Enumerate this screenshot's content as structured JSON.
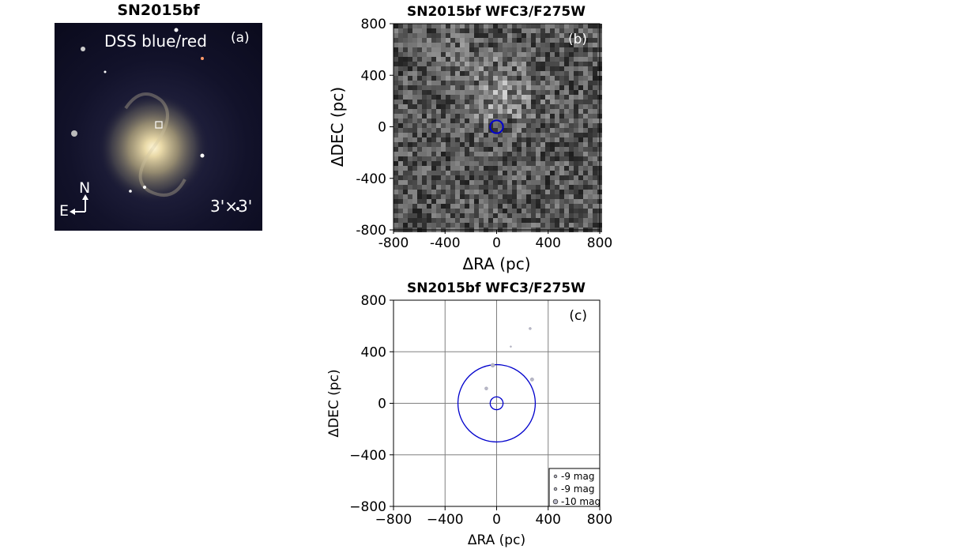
{
  "panel_a": {
    "title": "SN2015bf",
    "label": "DSS blue/red",
    "tag": "(a)",
    "north": "N",
    "east": "E",
    "fov": "3'×3'"
  },
  "chart_data": [
    {
      "type": "image",
      "title": "SN2015bf WFC3/F275W",
      "xlabel": "ΔRA (pc)",
      "ylabel": "ΔDEC (pc)",
      "xlim": [
        -800,
        800
      ],
      "ylim": [
        -800,
        800
      ],
      "xticks": [
        "-800",
        "-400",
        "0",
        "400",
        "800"
      ],
      "yticks": [
        "800",
        "400",
        "0",
        "-400",
        "-800"
      ],
      "tag": "(b)",
      "colormap": "grayscale",
      "marker_circle": {
        "x": 0,
        "y": 0,
        "r": 50,
        "color": "#0000cc"
      }
    },
    {
      "type": "scatter",
      "title": "SN2015bf WFC3/F275W",
      "xlabel": "ΔRA (pc)",
      "ylabel": "ΔDEC (pc)",
      "xlim": [
        -800,
        800
      ],
      "ylim": [
        -800,
        800
      ],
      "xticks": [
        "−800",
        "−400",
        "0",
        "400",
        "800"
      ],
      "yticks": [
        "800",
        "400",
        "0",
        "−400",
        "−800"
      ],
      "tag": "(c)",
      "grid": true,
      "circles": [
        {
          "x": 0,
          "y": 0,
          "r": 50,
          "color": "#0000cc"
        },
        {
          "x": 0,
          "y": 0,
          "r": 300,
          "color": "#0000cc"
        }
      ],
      "points": [
        {
          "x": 260,
          "y": 580,
          "s": 1.5
        },
        {
          "x": 110,
          "y": 440,
          "s": 1.0
        },
        {
          "x": -30,
          "y": 295,
          "s": 2.5
        },
        {
          "x": 275,
          "y": 185,
          "s": 2.2
        },
        {
          "x": -80,
          "y": 115,
          "s": 2.0
        }
      ],
      "legend": {
        "position": "lower-right",
        "entries": [
          "-9 mag",
          "-9 mag",
          "-10 mag"
        ]
      }
    }
  ]
}
